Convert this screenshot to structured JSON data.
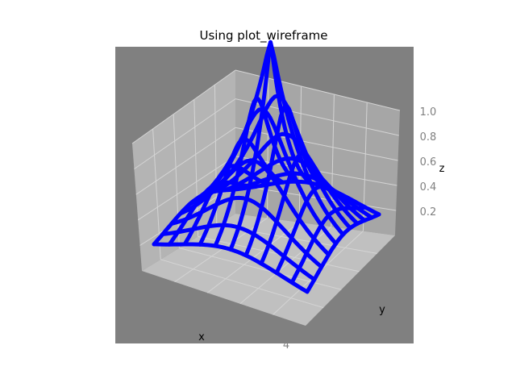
{
  "chart_data": {
    "type": "wireframe",
    "title": "Using plot_wireframe",
    "xlabel": "x",
    "ylabel": "y",
    "zlabel": "z",
    "z_ticks": [
      "1.0",
      "0.8",
      "0.6",
      "0.4",
      "0.2"
    ],
    "x_ticks": [
      "4"
    ],
    "zlim": [
      0,
      1
    ],
    "grid": true,
    "surface": "peaked bump, maximum 1.0 at center, decaying toward edges",
    "colors": {
      "background": "#808080",
      "pane_back": "#b4b4b4",
      "pane_side": "#a6a6a6",
      "floor": "#c0c0c0",
      "wire": "#0000ff"
    }
  }
}
